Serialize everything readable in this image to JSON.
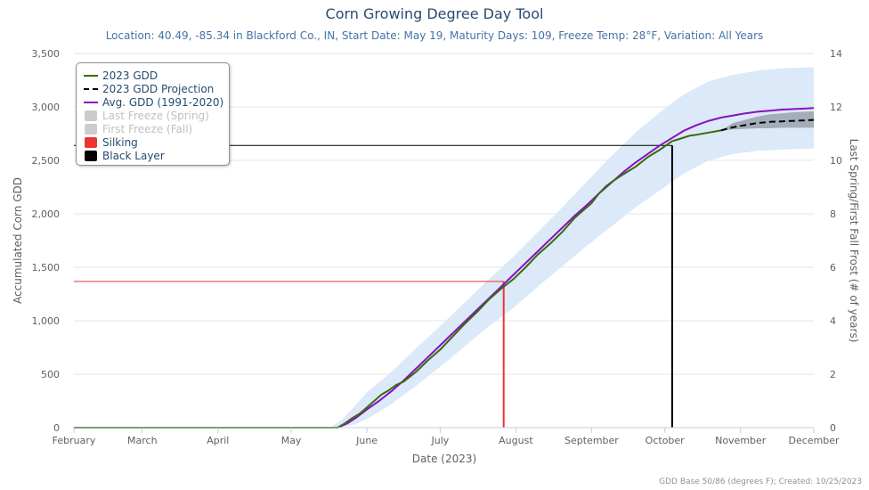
{
  "colors": {
    "gdd2023": "#3a6b0a",
    "projection": "#000000",
    "avg": "#8a0fbf",
    "band": "#dbe9f8",
    "band_projection": "#9aa1ab",
    "silking": "#ee3333",
    "black_layer": "#000000",
    "freeze": "#cccccc",
    "grid": "#e6e6e6",
    "axis_text": "#606060",
    "title": "#274b6d"
  },
  "chart_data": {
    "type": "line",
    "title": "Corn Growing Degree Day Tool",
    "subtitle": "Location: 40.49, -85.34 in Blackford Co., IN, Start Date: May 19, Maturity Days: 109, Freeze Temp: 28°F, Variation: All Years",
    "xlabel": "Date (2023)",
    "ylabel": "Accumulated Corn GDD",
    "y2label": "Last Spring/First Fall Frost (# of years)",
    "xlim": [
      0,
      303
    ],
    "ylim": [
      0,
      3500
    ],
    "y2lim": [
      0,
      14
    ],
    "x_unit": "days since February 1, 2023",
    "x_ticks": [
      {
        "label": "February",
        "x": 0
      },
      {
        "label": "March",
        "x": 28
      },
      {
        "label": "April",
        "x": 59
      },
      {
        "label": "May",
        "x": 89
      },
      {
        "label": "June",
        "x": 120
      },
      {
        "label": "July",
        "x": 150
      },
      {
        "label": "August",
        "x": 181
      },
      {
        "label": "September",
        "x": 212
      },
      {
        "label": "October",
        "x": 242
      },
      {
        "label": "November",
        "x": 273
      },
      {
        "label": "December",
        "x": 303
      }
    ],
    "y_ticks": [
      "0",
      "500",
      "1,000",
      "1,500",
      "2,000",
      "2,500",
      "3,000",
      "3,500"
    ],
    "y2_ticks": [
      "0",
      "2",
      "4",
      "6",
      "8",
      "10",
      "12",
      "14"
    ],
    "grid": true,
    "legend_position": "top-left",
    "series": [
      {
        "name": "2023 GDD",
        "x": [
          0,
          108,
          111,
          114,
          117,
          120,
          123,
          126,
          129,
          132,
          135,
          140,
          145,
          150,
          155,
          160,
          165,
          170,
          175,
          180,
          185,
          190,
          195,
          200,
          205,
          210,
          212,
          215,
          218,
          221,
          225,
          230,
          235,
          240,
          245,
          248,
          252,
          255,
          260,
          265
        ],
        "y": [
          0,
          0,
          40,
          90,
          130,
          190,
          250,
          310,
          350,
          400,
          430,
          520,
          630,
          730,
          850,
          970,
          1080,
          1200,
          1300,
          1390,
          1500,
          1620,
          1720,
          1830,
          1960,
          2060,
          2100,
          2190,
          2260,
          2310,
          2370,
          2440,
          2530,
          2600,
          2680,
          2700,
          2730,
          2740,
          2760,
          2780
        ]
      },
      {
        "name": "2023 GDD Projection",
        "x": [
          265,
          270,
          275,
          280,
          285,
          290,
          295,
          300,
          303
        ],
        "y": [
          2780,
          2810,
          2830,
          2850,
          2860,
          2865,
          2870,
          2875,
          2878
        ]
      },
      {
        "name": "Avg. GDD (1991-2020)",
        "x": [
          0,
          108,
          112,
          116,
          120,
          125,
          130,
          135,
          140,
          145,
          150,
          155,
          160,
          165,
          170,
          175,
          180,
          185,
          190,
          195,
          200,
          205,
          210,
          215,
          220,
          225,
          230,
          235,
          240,
          245,
          250,
          255,
          260,
          265,
          270,
          275,
          280,
          285,
          290,
          295,
          300,
          303
        ],
        "y": [
          0,
          0,
          40,
          100,
          170,
          250,
          340,
          440,
          550,
          660,
          770,
          880,
          990,
          1100,
          1210,
          1320,
          1430,
          1540,
          1650,
          1760,
          1870,
          1980,
          2080,
          2190,
          2290,
          2390,
          2480,
          2560,
          2640,
          2710,
          2780,
          2830,
          2870,
          2900,
          2920,
          2940,
          2955,
          2965,
          2975,
          2980,
          2985,
          2990
        ]
      }
    ],
    "range_band": {
      "x": [
        0,
        105,
        110,
        115,
        120,
        130,
        140,
        150,
        160,
        170,
        180,
        190,
        200,
        210,
        220,
        230,
        240,
        250,
        260,
        270,
        280,
        290,
        300,
        303
      ],
      "low": [
        0,
        0,
        5,
        30,
        80,
        220,
        390,
        570,
        760,
        950,
        1120,
        1320,
        1510,
        1700,
        1880,
        2060,
        2220,
        2380,
        2500,
        2560,
        2590,
        2600,
        2610,
        2610
      ],
      "high": [
        0,
        0,
        80,
        200,
        330,
        520,
        740,
        950,
        1170,
        1390,
        1600,
        1830,
        2060,
        2300,
        2540,
        2760,
        2950,
        3120,
        3240,
        3300,
        3340,
        3360,
        3370,
        3370
      ]
    },
    "projection_band": {
      "x": [
        265,
        270,
        275,
        280,
        285,
        290,
        295,
        300,
        303
      ],
      "low": [
        2780,
        2790,
        2795,
        2800,
        2800,
        2805,
        2805,
        2805,
        2805
      ],
      "high": [
        2780,
        2850,
        2880,
        2910,
        2930,
        2940,
        2950,
        2955,
        2958
      ]
    },
    "markers": [
      {
        "name": "Silking",
        "x": 176,
        "gdd": 1368
      },
      {
        "name": "Black Layer",
        "x": 245,
        "gdd": 2640
      }
    ],
    "legend": [
      {
        "label": "2023 GDD",
        "symbol": "line",
        "color": "#3a6b0a",
        "visible": true
      },
      {
        "label": "2023 GDD Projection",
        "symbol": "dash",
        "color": "#000000",
        "visible": true
      },
      {
        "label": "Avg. GDD (1991-2020)",
        "symbol": "line",
        "color": "#8a0fbf",
        "visible": true
      },
      {
        "label": "Last Freeze (Spring)",
        "symbol": "box",
        "color": "#cccccc",
        "visible": false
      },
      {
        "label": "First Freeze (Fall)",
        "symbol": "box",
        "color": "#cccccc",
        "visible": false
      },
      {
        "label": "Silking",
        "symbol": "box",
        "color": "#ee3333",
        "visible": true
      },
      {
        "label": "Black Layer",
        "symbol": "box",
        "color": "#000000",
        "visible": true
      }
    ]
  },
  "credits": "GDD Base 50/86 (degrees F); Created: 10/25/2023"
}
